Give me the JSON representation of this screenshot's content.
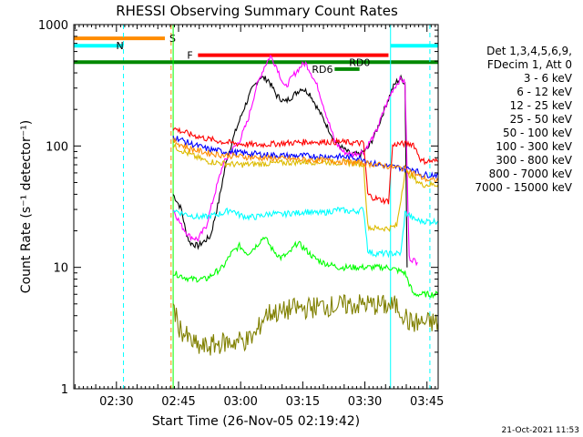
{
  "chart_data": {
    "type": "line",
    "title": "RHESSI Observing Summary Count Rates",
    "xlabel": "Start Time (26-Nov-05 02:19:42)",
    "ylabel": "Count Rate (s⁻¹ detector⁻¹)",
    "yscale": "log",
    "ylim": [
      1,
      1000
    ],
    "xlim_minutes": [
      0,
      88
    ],
    "x_tick_labels": [
      "02:30",
      "02:45",
      "03:00",
      "03:15",
      "03:30",
      "03:45"
    ],
    "x_ticks_minutes": [
      10.3,
      25.3,
      40.3,
      55.3,
      70.3,
      85.3
    ],
    "y_tick_labels": [
      "1",
      "10",
      "100",
      "1000"
    ],
    "y_ticks": [
      1,
      10,
      100,
      1000
    ],
    "grid": false,
    "legend_placement": "right",
    "legend_header": [
      "Det 1,3,4,5,6,9,",
      "FDecim 1, Att 0"
    ],
    "series": [
      {
        "name": "3 - 6 keV",
        "color": "#000000",
        "x": [
          24,
          26,
          27,
          28,
          30,
          33,
          35,
          37,
          39,
          41,
          43,
          45,
          47,
          49,
          51,
          53,
          55,
          57,
          59,
          61,
          63,
          65,
          67,
          69,
          71,
          73,
          75,
          77,
          78,
          79,
          80,
          80.5
        ],
        "values": [
          40,
          30,
          20,
          16,
          15,
          18,
          35,
          80,
          130,
          200,
          290,
          370,
          350,
          260,
          230,
          260,
          300,
          270,
          200,
          150,
          110,
          95,
          85,
          85,
          95,
          130,
          200,
          300,
          340,
          360,
          330,
          10
        ]
      },
      {
        "name": "6 - 12 keV",
        "color": "#ff00ff",
        "x": [
          24,
          26,
          28,
          30,
          32,
          34,
          36,
          38,
          40,
          42,
          44,
          46,
          47.5,
          49,
          51,
          53,
          55,
          56,
          57,
          59,
          61,
          63,
          65,
          67,
          70,
          73,
          75,
          77,
          79,
          80,
          81,
          83
        ],
        "values": [
          30,
          22,
          18,
          17,
          22,
          40,
          70,
          90,
          110,
          160,
          300,
          450,
          550,
          450,
          300,
          380,
          460,
          480,
          420,
          300,
          180,
          110,
          90,
          85,
          90,
          130,
          200,
          290,
          360,
          330,
          12,
          11
        ]
      },
      {
        "name": "12 - 25 keV",
        "color": "#00ff00",
        "x": [
          24,
          26,
          28,
          30,
          32,
          34,
          36,
          38,
          40,
          42,
          44,
          46,
          48,
          50,
          52,
          54,
          56,
          58,
          60,
          62,
          64,
          66,
          68,
          70,
          72,
          74,
          76,
          78,
          80,
          82,
          84,
          86,
          88
        ],
        "values": [
          9,
          8.5,
          8,
          8,
          8,
          9,
          10,
          13,
          15,
          13,
          15,
          18,
          14,
          12,
          13,
          16,
          14,
          12,
          11,
          10.5,
          10,
          10,
          10,
          10,
          10,
          10,
          10,
          9.5,
          9,
          6,
          6,
          6,
          6
        ]
      },
      {
        "name": "25 - 50 keV",
        "color": "#00ffff",
        "x": [
          24,
          26,
          28,
          30,
          32,
          34,
          36,
          38,
          40,
          42,
          44,
          46,
          48,
          50,
          52,
          54,
          56,
          58,
          60,
          62,
          64,
          66,
          68,
          70,
          71,
          72,
          74,
          76,
          78,
          79,
          80,
          81,
          82,
          84,
          86,
          88
        ],
        "values": [
          30,
          28,
          27,
          26,
          26,
          27,
          28,
          30,
          27,
          26,
          26,
          27,
          28,
          27,
          28,
          28,
          29,
          28,
          28,
          29,
          30,
          29,
          29,
          30,
          14,
          13,
          13,
          13,
          13,
          13,
          28,
          27,
          25,
          24,
          24,
          24
        ]
      },
      {
        "name": "50 - 100 keV",
        "color": "#ddbb00",
        "x": [
          24,
          28,
          32,
          36,
          40,
          44,
          48,
          52,
          56,
          60,
          64,
          68,
          70,
          71,
          72,
          74,
          76,
          78,
          80,
          82,
          84,
          86,
          88
        ],
        "values": [
          100,
          85,
          75,
          72,
          70,
          71,
          72,
          73,
          74,
          74,
          73,
          72,
          70,
          22,
          21,
          21,
          21,
          22,
          62,
          55,
          48,
          48,
          48
        ]
      },
      {
        "name": "100 - 300 keV",
        "color": "#ff0000",
        "x": [
          24,
          28,
          32,
          36,
          40,
          44,
          48,
          52,
          56,
          60,
          64,
          68,
          70,
          71,
          72,
          74,
          76,
          77,
          78,
          80,
          82,
          84,
          86,
          88
        ],
        "values": [
          140,
          125,
          115,
          108,
          104,
          102,
          104,
          106,
          108,
          108,
          108,
          106,
          105,
          40,
          38,
          36,
          35,
          100,
          104,
          104,
          104,
          75,
          75,
          75
        ]
      },
      {
        "name": "300 - 800 keV",
        "color": "#0000ff",
        "x": [
          24,
          28,
          32,
          36,
          40,
          44,
          48,
          52,
          56,
          60,
          64,
          68,
          70,
          72,
          74,
          76,
          78,
          80,
          82,
          84,
          86,
          88
        ],
        "values": [
          120,
          105,
          95,
          90,
          88,
          86,
          84,
          83,
          83,
          82,
          82,
          80,
          78,
          72,
          70,
          68,
          67,
          65,
          65,
          58,
          58,
          58
        ]
      },
      {
        "name": "800 - 7000 keV",
        "color": "#ff8c00",
        "x": [
          24,
          28,
          32,
          36,
          40,
          44,
          48,
          52,
          56,
          60,
          64,
          68,
          72,
          76,
          80,
          84,
          86,
          88
        ],
        "values": [
          110,
          95,
          88,
          84,
          82,
          80,
          79,
          78,
          77,
          76,
          75,
          73,
          71,
          68,
          65,
          55,
          52,
          52
        ]
      },
      {
        "name": "7000 - 15000 keV",
        "color": "#808000",
        "x": [
          24,
          25,
          26,
          28,
          30,
          32,
          34,
          36,
          38,
          40,
          42,
          44,
          46,
          48,
          50,
          52,
          54,
          56,
          58,
          60,
          62,
          64,
          66,
          68,
          70,
          72,
          74,
          76,
          78,
          80,
          81,
          82,
          84,
          86,
          88
        ],
        "values": [
          5,
          3.5,
          3,
          2.5,
          2.2,
          2.2,
          2.3,
          2.4,
          2.4,
          2.5,
          2.5,
          2.8,
          4,
          4.3,
          4.2,
          4.5,
          4.6,
          4.6,
          4.7,
          4.8,
          4.8,
          4.8,
          4.9,
          4.9,
          5,
          4.9,
          4.9,
          4.8,
          4.8,
          4,
          3.5,
          3.5,
          3.5,
          3.5,
          3.5
        ]
      }
    ],
    "annotations": [
      {
        "label": "S",
        "color": "#ff8c00",
        "x_start": 0,
        "x_end": 22,
        "value": 770,
        "marker_x": 23.5,
        "marker_style": "dashed"
      },
      {
        "label": "N",
        "color": "#00ffff",
        "x_start": 0,
        "x_end": 12,
        "value": 670,
        "marker_x": 12,
        "marker_style": "dashed"
      },
      {
        "label": "F",
        "color": "#ff0000",
        "x_start": 30,
        "x_end": 76,
        "value": 560
      },
      {
        "label": "RD0",
        "color": "#008800",
        "x_start": 0,
        "x_end": 88,
        "value": 490
      },
      {
        "label": "RD6",
        "color": "#008800",
        "x_start": 63,
        "x_end": 69,
        "value": 430
      },
      {
        "label": "",
        "color": "#00ffff",
        "x_start": 76.5,
        "x_end": 88,
        "value": 670,
        "marker_x": 76.5,
        "marker_style": "solid"
      },
      {
        "label": "",
        "color": "#00ffff",
        "x_start": 86,
        "x_end": 86,
        "value": 670,
        "marker_x": 86,
        "marker_style": "dashed"
      },
      {
        "label": "",
        "color": "#00ff00",
        "x_start": 24,
        "x_end": 24,
        "value": 1,
        "marker_x": 24,
        "marker_style": "solid"
      }
    ],
    "timestamp": "21-Oct-2021 11:53"
  }
}
